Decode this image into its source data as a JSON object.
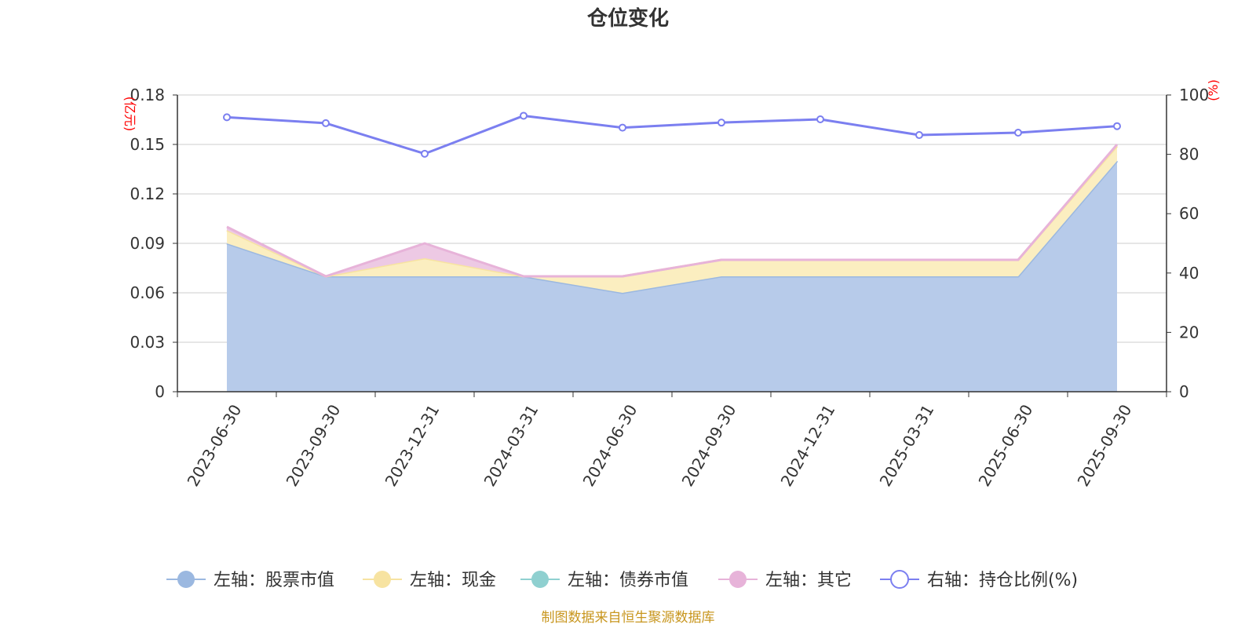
{
  "chart_data": {
    "type": "area",
    "title": "仓位变化",
    "categories": [
      "2023-06-30",
      "2023-09-30",
      "2023-12-31",
      "2024-03-31",
      "2024-06-30",
      "2024-09-30",
      "2024-12-31",
      "2025-03-31",
      "2025-06-30",
      "2025-09-30"
    ],
    "left_axis": {
      "unit": "(亿元)",
      "ylim": [
        0,
        0.18
      ],
      "ticks": [
        "0",
        "0.03",
        "0.06",
        "0.09",
        "0.12",
        "0.15",
        "0.18"
      ]
    },
    "right_axis": {
      "unit": "(%)",
      "ylim": [
        0,
        100
      ],
      "ticks": [
        "0",
        "20",
        "40",
        "60",
        "80",
        "100"
      ]
    },
    "grid": true,
    "stacked": true,
    "series": [
      {
        "name": "左轴：股票市值",
        "axis": "left",
        "kind": "area",
        "color": "#9bb8e0",
        "fill": "#b7cbea",
        "values": [
          0.09,
          0.07,
          0.07,
          0.07,
          0.06,
          0.07,
          0.07,
          0.07,
          0.07,
          0.14
        ]
      },
      {
        "name": "左轴：现金",
        "axis": "left",
        "kind": "area",
        "color": "#f7e3a1",
        "fill": "#fbeec0",
        "values": [
          0.008,
          0.0,
          0.011,
          0.0,
          0.01,
          0.01,
          0.01,
          0.01,
          0.01,
          0.009
        ]
      },
      {
        "name": "左轴：债券市值",
        "axis": "left",
        "kind": "area",
        "color": "#8fd0d0",
        "fill": "#b7e3e3",
        "values": [
          0,
          0,
          0,
          0,
          0,
          0,
          0,
          0,
          0,
          0
        ]
      },
      {
        "name": "左轴：其它",
        "axis": "left",
        "kind": "area",
        "color": "#e7b3d9",
        "fill": "#edc9e4",
        "values": [
          0.002,
          0.0,
          0.009,
          0.0,
          0.0,
          0.0,
          0.0,
          0.0,
          0.0,
          0.001
        ]
      },
      {
        "name": "右轴：持仓比例(%)",
        "axis": "right",
        "kind": "line",
        "color": "#7b7ff0",
        "values": [
          92.5,
          90.5,
          80.2,
          93.0,
          89.0,
          90.7,
          91.8,
          86.5,
          87.3,
          89.5
        ]
      }
    ],
    "legend_position": "bottom",
    "source": "制图数据来自恒生聚源数据库"
  }
}
